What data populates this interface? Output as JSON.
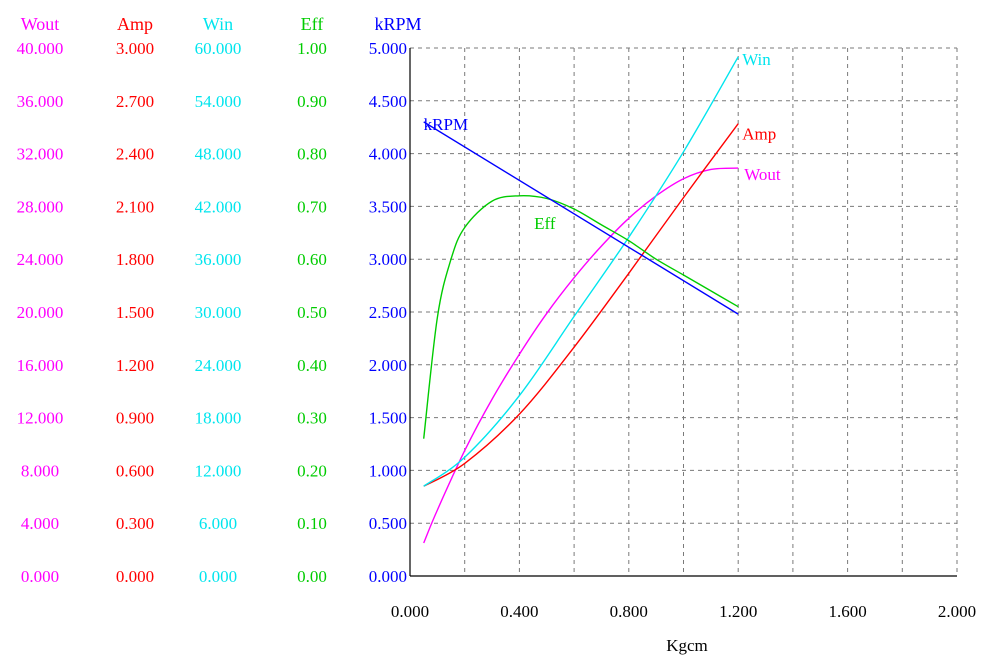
{
  "chart_data": {
    "type": "line",
    "xlabel": "Kgcm",
    "xlim": [
      0,
      2
    ],
    "x_ticks": [
      "0.000",
      "0.400",
      "0.800",
      "1.200",
      "1.600",
      "2.000"
    ],
    "grid": true,
    "axes": [
      {
        "label": "Wout",
        "color": "#ff00ff",
        "min": 0,
        "max": 40,
        "ticks": [
          "0.000",
          "4.000",
          "8.000",
          "12.000",
          "16.000",
          "20.000",
          "24.000",
          "28.000",
          "32.000",
          "36.000",
          "40.000"
        ]
      },
      {
        "label": "Amp",
        "color": "#ff0000",
        "min": 0,
        "max": 3,
        "ticks": [
          "0.000",
          "0.300",
          "0.600",
          "0.900",
          "1.200",
          "1.500",
          "1.800",
          "2.100",
          "2.400",
          "2.700",
          "3.000"
        ]
      },
      {
        "label": "Win",
        "color": "#00e5ee",
        "min": 0,
        "max": 60,
        "ticks": [
          "0.000",
          "6.000",
          "12.000",
          "18.000",
          "24.000",
          "30.000",
          "36.000",
          "42.000",
          "48.000",
          "54.000",
          "60.000"
        ]
      },
      {
        "label": "Eff",
        "color": "#00cc00",
        "min": 0,
        "max": 1,
        "ticks": [
          "0.00",
          "0.10",
          "0.20",
          "0.30",
          "0.40",
          "0.50",
          "0.60",
          "0.70",
          "0.80",
          "0.90",
          "1.00"
        ]
      },
      {
        "label": "kRPM",
        "color": "#0000ff",
        "min": 0,
        "max": 5,
        "ticks": [
          "0.000",
          "0.500",
          "1.000",
          "1.500",
          "2.000",
          "2.500",
          "3.000",
          "3.500",
          "4.000",
          "4.500",
          "5.000"
        ]
      }
    ],
    "series": [
      {
        "name": "Wout",
        "color": "#ff00ff",
        "x": [
          0.05,
          0.1,
          0.2,
          0.3,
          0.4,
          0.5,
          0.6,
          0.7,
          0.8,
          0.9,
          1.0,
          1.1,
          1.2
        ],
        "y": [
          2.5,
          5.0,
          9.5,
          13.4,
          16.8,
          19.9,
          22.6,
          25.0,
          27.1,
          28.8,
          30.1,
          30.8,
          30.9
        ]
      },
      {
        "name": "Amp",
        "color": "#ff0000",
        "x": [
          0.05,
          0.2,
          0.4,
          0.6,
          0.8,
          1.0,
          1.2
        ],
        "y": [
          0.51,
          0.64,
          0.92,
          1.3,
          1.72,
          2.15,
          2.57
        ]
      },
      {
        "name": "Win",
        "color": "#00e5ee",
        "x": [
          0.05,
          0.2,
          0.4,
          0.6,
          0.8,
          1.0,
          1.2
        ],
        "y": [
          10.2,
          13.5,
          20.5,
          29.5,
          38.5,
          48.2,
          59.0
        ]
      },
      {
        "name": "Eff",
        "color": "#00cc00",
        "x": [
          0.05,
          0.1,
          0.15,
          0.2,
          0.3,
          0.4,
          0.5,
          0.6,
          0.7,
          0.8,
          0.9,
          1.0,
          1.1,
          1.2
        ],
        "y": [
          0.26,
          0.49,
          0.6,
          0.66,
          0.71,
          0.72,
          0.715,
          0.695,
          0.665,
          0.635,
          0.6,
          0.57,
          0.54,
          0.51
        ]
      },
      {
        "name": "kRPM",
        "color": "#0000ff",
        "x": [
          0.05,
          1.2
        ],
        "y": [
          4.3,
          2.48
        ]
      }
    ]
  }
}
